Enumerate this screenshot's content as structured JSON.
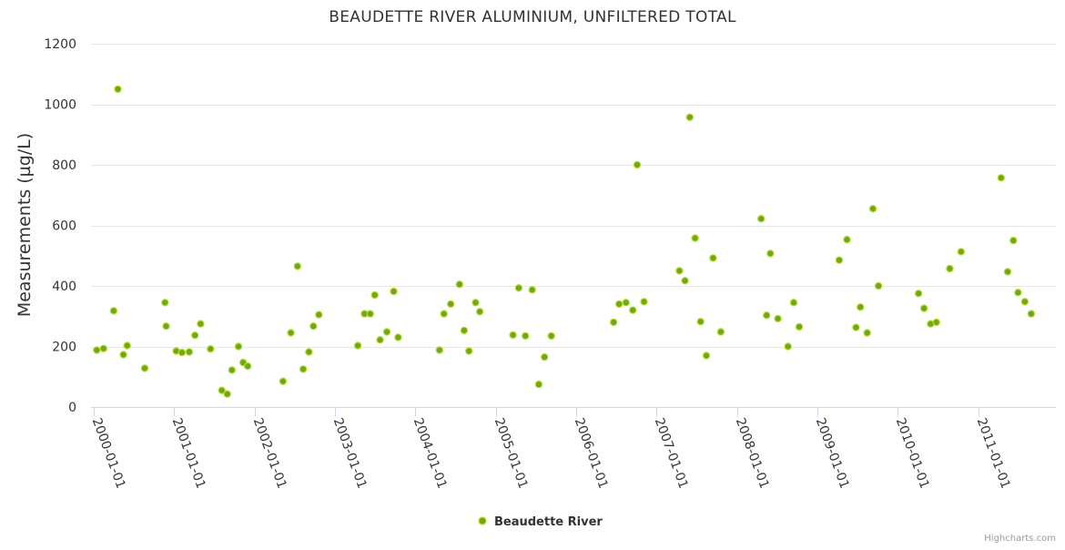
{
  "chart_data": {
    "type": "scatter",
    "title": "BEAUDETTE RIVER ALUMINIUM, UNFILTERED TOTAL",
    "xlabel": "",
    "ylabel": "Measurements (µg/L)",
    "ylim": [
      0,
      1200
    ],
    "yticks": [
      0,
      200,
      400,
      600,
      800,
      1000,
      1200
    ],
    "xlim": [
      "1999-12-20",
      "2011-12-20"
    ],
    "xticks": [
      "2000-01-01",
      "2001-01-01",
      "2002-01-01",
      "2003-01-01",
      "2004-01-01",
      "2005-01-01",
      "2006-01-01",
      "2007-01-01",
      "2008-01-01",
      "2009-01-01",
      "2010-01-01",
      "2011-01-01"
    ],
    "grid": true,
    "legend_position": "bottom-center",
    "credits": "Highcharts.com",
    "marker_color": "#6ea61d",
    "marker_stroke": "#b9dc28",
    "series": [
      {
        "name": "Beaudette River",
        "points": [
          [
            "2000-01-15",
            188
          ],
          [
            "2000-02-15",
            193
          ],
          [
            "2000-04-01",
            318
          ],
          [
            "2000-04-20",
            1050
          ],
          [
            "2000-05-15",
            173
          ],
          [
            "2000-06-01",
            203
          ],
          [
            "2000-08-20",
            128
          ],
          [
            "2000-11-20",
            345
          ],
          [
            "2000-11-25",
            267
          ],
          [
            "2001-01-10",
            185
          ],
          [
            "2001-02-05",
            180
          ],
          [
            "2001-03-10",
            182
          ],
          [
            "2001-04-05",
            237
          ],
          [
            "2001-05-01",
            275
          ],
          [
            "2001-06-15",
            192
          ],
          [
            "2001-08-05",
            55
          ],
          [
            "2001-08-30",
            43
          ],
          [
            "2001-09-20",
            122
          ],
          [
            "2001-10-20",
            200
          ],
          [
            "2001-11-10",
            147
          ],
          [
            "2001-12-01",
            135
          ],
          [
            "2002-05-10",
            85
          ],
          [
            "2002-06-15",
            245
          ],
          [
            "2002-07-15",
            465
          ],
          [
            "2002-08-10",
            125
          ],
          [
            "2002-09-05",
            182
          ],
          [
            "2002-09-25",
            267
          ],
          [
            "2002-10-20",
            305
          ],
          [
            "2003-04-15",
            203
          ],
          [
            "2003-05-15",
            308
          ],
          [
            "2003-06-10",
            308
          ],
          [
            "2003-07-01",
            370
          ],
          [
            "2003-07-25",
            222
          ],
          [
            "2003-08-25",
            248
          ],
          [
            "2003-09-25",
            382
          ],
          [
            "2003-10-15",
            230
          ],
          [
            "2004-04-20",
            188
          ],
          [
            "2004-05-10",
            308
          ],
          [
            "2004-06-10",
            340
          ],
          [
            "2004-07-20",
            405
          ],
          [
            "2004-08-10",
            253
          ],
          [
            "2004-09-01",
            185
          ],
          [
            "2004-10-01",
            345
          ],
          [
            "2004-10-20",
            315
          ],
          [
            "2005-03-20",
            238
          ],
          [
            "2005-04-15",
            393
          ],
          [
            "2005-05-15",
            235
          ],
          [
            "2005-06-15",
            387
          ],
          [
            "2005-07-15",
            75
          ],
          [
            "2005-08-10",
            165
          ],
          [
            "2005-09-10",
            235
          ],
          [
            "2006-06-20",
            280
          ],
          [
            "2006-07-15",
            340
          ],
          [
            "2006-08-15",
            345
          ],
          [
            "2006-09-15",
            320
          ],
          [
            "2006-10-05",
            800
          ],
          [
            "2006-11-05",
            348
          ],
          [
            "2007-04-15",
            450
          ],
          [
            "2007-05-10",
            417
          ],
          [
            "2007-06-01",
            957
          ],
          [
            "2007-06-25",
            558
          ],
          [
            "2007-07-20",
            282
          ],
          [
            "2007-08-15",
            170
          ],
          [
            "2007-09-15",
            492
          ],
          [
            "2007-10-20",
            248
          ],
          [
            "2008-04-20",
            622
          ],
          [
            "2008-05-15",
            303
          ],
          [
            "2008-06-01",
            507
          ],
          [
            "2008-07-05",
            292
          ],
          [
            "2008-08-20",
            200
          ],
          [
            "2008-09-15",
            345
          ],
          [
            "2008-10-10",
            265
          ],
          [
            "2009-04-10",
            485
          ],
          [
            "2009-05-15",
            553
          ],
          [
            "2009-06-25",
            263
          ],
          [
            "2009-07-15",
            330
          ],
          [
            "2009-08-15",
            245
          ],
          [
            "2009-09-10",
            655
          ],
          [
            "2009-10-05",
            400
          ],
          [
            "2010-04-05",
            375
          ],
          [
            "2010-04-30",
            326
          ],
          [
            "2010-05-30",
            275
          ],
          [
            "2010-06-25",
            280
          ],
          [
            "2010-08-25",
            457
          ],
          [
            "2010-10-15",
            513
          ],
          [
            "2011-04-15",
            757
          ],
          [
            "2011-05-15",
            447
          ],
          [
            "2011-06-10",
            550
          ],
          [
            "2011-07-01",
            378
          ],
          [
            "2011-08-01",
            348
          ],
          [
            "2011-08-30",
            308
          ]
        ]
      }
    ]
  }
}
